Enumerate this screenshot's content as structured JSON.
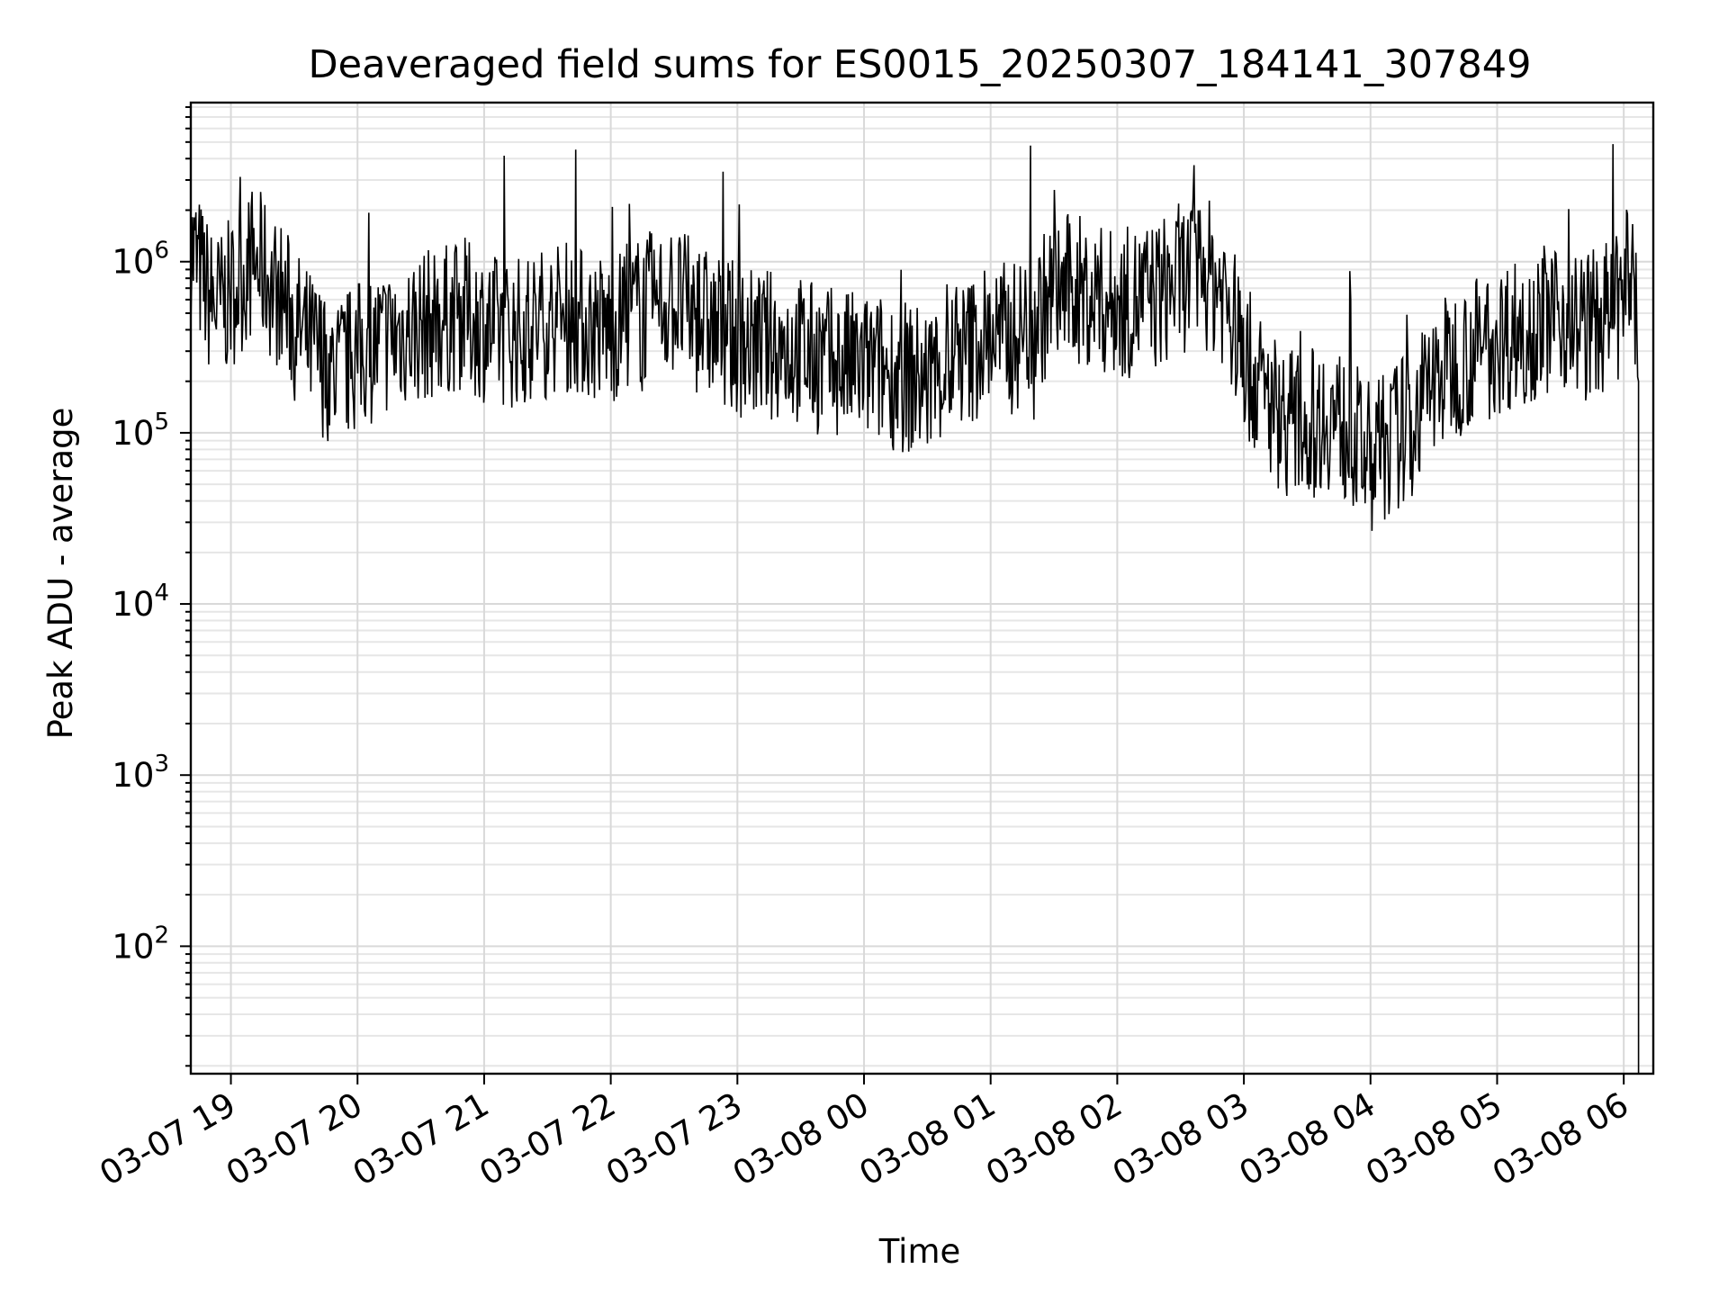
{
  "chart_data": {
    "type": "line",
    "title": "Deaveraged field sums for ES0015_20250307_184141_307849",
    "xlabel": "Time",
    "ylabel": "Peak ADU - average",
    "yscale": "log",
    "ylim": [
      18,
      8500000
    ],
    "xlim": [
      "03-07 18:41",
      "03-08 06:14"
    ],
    "grid": true,
    "line_color": "#000000",
    "x_ticks": [
      {
        "label": "03-07 19",
        "hour": 19
      },
      {
        "label": "03-07 20",
        "hour": 20
      },
      {
        "label": "03-07 21",
        "hour": 21
      },
      {
        "label": "03-07 22",
        "hour": 22
      },
      {
        "label": "03-07 23",
        "hour": 23
      },
      {
        "label": "03-08 00",
        "hour": 24
      },
      {
        "label": "03-08 01",
        "hour": 25
      },
      {
        "label": "03-08 02",
        "hour": 26
      },
      {
        "label": "03-08 03",
        "hour": 27
      },
      {
        "label": "03-08 04",
        "hour": 28
      },
      {
        "label": "03-08 05",
        "hour": 29
      },
      {
        "label": "03-08 06",
        "hour": 30
      }
    ],
    "y_ticks": [
      {
        "base": "10",
        "exp": "2",
        "value": 100
      },
      {
        "base": "10",
        "exp": "3",
        "value": 1000
      },
      {
        "base": "10",
        "exp": "4",
        "value": 10000
      },
      {
        "base": "10",
        "exp": "5",
        "value": 100000
      },
      {
        "base": "10",
        "exp": "6",
        "value": 1000000
      }
    ],
    "series": [
      {
        "x": [
          "03-07 18:41",
          "03-07 18:45",
          "03-07 18:50",
          "03-07 18:55",
          "03-07 19:00",
          "03-07 19:05",
          "03-07 19:10",
          "03-07 19:15",
          "03-07 19:20",
          "03-07 19:25",
          "03-07 19:30",
          "03-07 19:35",
          "03-07 19:40",
          "03-07 19:45",
          "03-07 19:50",
          "03-07 19:55",
          "03-07 20:00",
          "03-07 20:10",
          "03-07 20:20",
          "03-07 20:30",
          "03-07 20:40",
          "03-07 20:50",
          "03-07 21:00",
          "03-07 21:10",
          "03-07 21:20",
          "03-07 21:30",
          "03-07 21:40",
          "03-07 21:50",
          "03-07 22:00",
          "03-07 22:10",
          "03-07 22:20",
          "03-07 22:30",
          "03-07 22:40",
          "03-07 22:50",
          "03-07 23:00",
          "03-07 23:10",
          "03-07 23:20",
          "03-07 23:30",
          "03-07 23:40",
          "03-07 23:50",
          "03-08 00:00",
          "03-08 00:10",
          "03-08 00:20",
          "03-08 00:30",
          "03-08 00:40",
          "03-08 00:50",
          "03-08 01:00",
          "03-08 01:10",
          "03-08 01:20",
          "03-08 01:30",
          "03-08 01:40",
          "03-08 01:50",
          "03-08 02:00",
          "03-08 02:10",
          "03-08 02:20",
          "03-08 02:30",
          "03-08 02:40",
          "03-08 02:50",
          "03-08 03:00",
          "03-08 03:10",
          "03-08 03:20",
          "03-08 03:30",
          "03-08 03:40",
          "03-08 03:50",
          "03-08 04:00",
          "03-08 04:10",
          "03-08 04:20",
          "03-08 04:30",
          "03-08 04:40",
          "03-08 04:50",
          "03-08 05:00",
          "03-08 05:10",
          "03-08 05:20",
          "03-08 05:30",
          "03-08 05:40",
          "03-08 05:50",
          "03-08 06:00",
          "03-08 06:03",
          "03-08 06:05",
          "03-08 06:06",
          "03-08 06:07"
        ],
        "y": [
          1200000,
          900000,
          600000,
          550000,
          650000,
          800000,
          1000000,
          900000,
          700000,
          600000,
          450000,
          350000,
          300000,
          250000,
          220000,
          250000,
          280000,
          330000,
          380000,
          420000,
          450000,
          500000,
          420000,
          380000,
          400000,
          450000,
          480000,
          420000,
          400000,
          500000,
          550000,
          600000,
          480000,
          400000,
          350000,
          320000,
          330000,
          300000,
          260000,
          250000,
          240000,
          230000,
          210000,
          200000,
          250000,
          300000,
          380000,
          350000,
          450000,
          650000,
          700000,
          600000,
          550000,
          600000,
          650000,
          800000,
          900000,
          700000,
          280000,
          160000,
          120000,
          110000,
          130000,
          100000,
          70000,
          90000,
          120000,
          200000,
          260000,
          300000,
          350000,
          400000,
          450000,
          500000,
          420000,
          450000,
          600000,
          900000,
          700000,
          500000,
          200000
        ]
      }
    ]
  }
}
